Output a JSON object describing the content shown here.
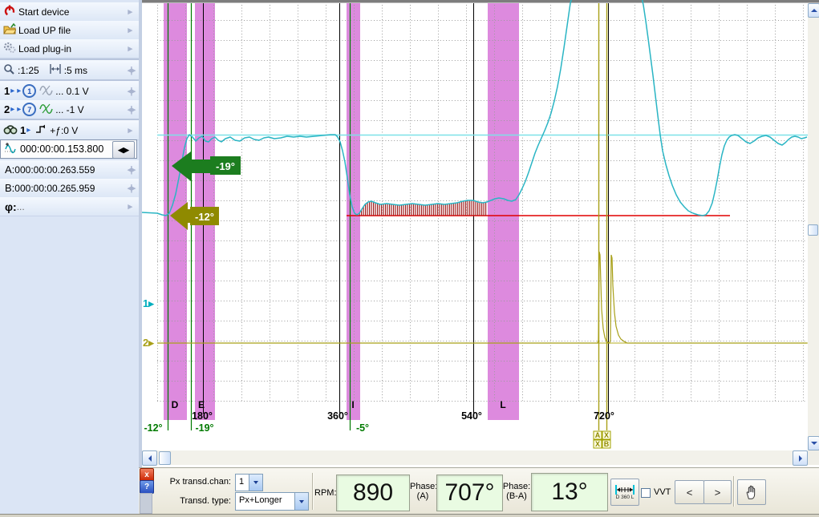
{
  "sidebar": {
    "menu_items": [
      {
        "label": "Start device"
      },
      {
        "label": "Load UP file"
      },
      {
        "label": "Load plug-in"
      }
    ],
    "zoom_row": {
      "scale": ":1:25",
      "time": ":5 ms"
    },
    "channel_rows": [
      {
        "num": "1",
        "probe": "1",
        "value": "... 0.1 V"
      },
      {
        "num": "2",
        "probe": "7",
        "value": "... -1 V"
      }
    ],
    "sync_row": {
      "channel": "1",
      "value": "+ƒ:0 V"
    },
    "time_row": {
      "value": "000:00:00.153.800"
    },
    "cursor_rows": [
      {
        "label": "A:",
        "value": "000:00:00.263.559"
      },
      {
        "label": "B:",
        "value": "000:00:00.265.959"
      }
    ],
    "phase_row": {
      "label": "φ:",
      "value": "..."
    }
  },
  "icons": {
    "nav_pair": "◂|▸",
    "nav_single": "▸",
    "nav_black": "◀▶",
    "combo_names": [
      "power-icon",
      "folder-up-icon",
      "plugin-gear-icon",
      "magnifier-icon",
      "hspan-icon",
      "wave-icon",
      "binoculars-icon",
      "trigger-edge-icon",
      "timewave-icon"
    ]
  },
  "plot": {
    "degree_labels": [
      {
        "text": "180°"
      },
      {
        "text": "360°"
      },
      {
        "text": "540°"
      },
      {
        "text": "720°"
      }
    ],
    "event_labels": [
      {
        "text": "D"
      },
      {
        "text": "E"
      },
      {
        "text": "I"
      },
      {
        "text": "L"
      }
    ],
    "cursor_degree_labels": [
      {
        "text": "-12°"
      },
      {
        "text": "-19°"
      },
      {
        "text": "-5°"
      }
    ],
    "arrow_labels": {
      "green": "-19°",
      "olive": "-12°"
    },
    "channel_markers": [
      {
        "text": "1▸"
      },
      {
        "text": "2▸"
      }
    ],
    "grip_letters": [
      "A",
      "X",
      "X",
      "B"
    ],
    "colors": {
      "wave_teal": "#2ab5c4",
      "level_cyan": "#7de2e8",
      "red_line": "#e00000",
      "hatch_red": "#a02020",
      "band_purple": "#dd8ade",
      "cursor_green": "#007a00",
      "olive": "#a8a018",
      "arrow_green": "#1c7d1f",
      "arrow_olive": "#8f8a00"
    }
  },
  "toolbar": {
    "px_chan_label": "Px transd.chan:",
    "px_chan_value": "1",
    "transd_type_label": "Transd. type:",
    "transd_type_value": "Px+Longer",
    "rpm_label": "RPM:",
    "rpm_value": "890",
    "phase_a_label": "Phase:",
    "phase_a_sub": "(A)",
    "phase_a_value": "707°",
    "phase_ba_label": "Phase:",
    "phase_ba_sub": "(B-A)",
    "phase_ba_value": "13°",
    "ruler_button_text": "D 360 L",
    "vvt_label": "VVT",
    "prev_label": "<",
    "next_label": ">",
    "close_label": "x",
    "help_label": "?"
  }
}
